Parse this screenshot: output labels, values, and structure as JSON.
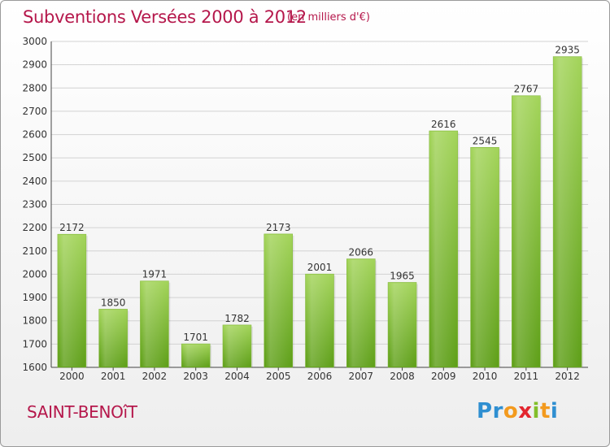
{
  "header": {
    "title": "Subventions Versées 2000 à 2012",
    "unit": "(en milliers d'€)"
  },
  "footer": {
    "commune": "SAINT-BENOîT",
    "logo": [
      {
        "char": "P",
        "color": "#2f8fd1"
      },
      {
        "char": "r",
        "color": "#2f8fd1"
      },
      {
        "char": "o",
        "color": "#f39a1e"
      },
      {
        "char": "x",
        "color": "#e3262f"
      },
      {
        "char": "i",
        "color": "#82bf2a"
      },
      {
        "char": "t",
        "color": "#f39a1e"
      },
      {
        "char": "i",
        "color": "#2f8fd1"
      }
    ]
  },
  "colors": {
    "bar_top": "#a3d45a",
    "bar_bottom": "#5e9f18",
    "grid": "#d2d2d2",
    "title": "#b5174b"
  },
  "chart_data": {
    "type": "bar",
    "categories": [
      "2000",
      "2001",
      "2002",
      "2003",
      "2004",
      "2005",
      "2006",
      "2007",
      "2008",
      "2009",
      "2010",
      "2011",
      "2012"
    ],
    "values": [
      2172,
      1850,
      1971,
      1701,
      1782,
      2173,
      2001,
      2066,
      1965,
      2616,
      2545,
      2767,
      2935
    ],
    "ylim": [
      1600,
      3000
    ],
    "yticks": [
      1600,
      1700,
      1800,
      1900,
      2000,
      2100,
      2200,
      2300,
      2400,
      2500,
      2600,
      2700,
      2800,
      2900,
      3000
    ],
    "grid": true,
    "legend": "none"
  }
}
